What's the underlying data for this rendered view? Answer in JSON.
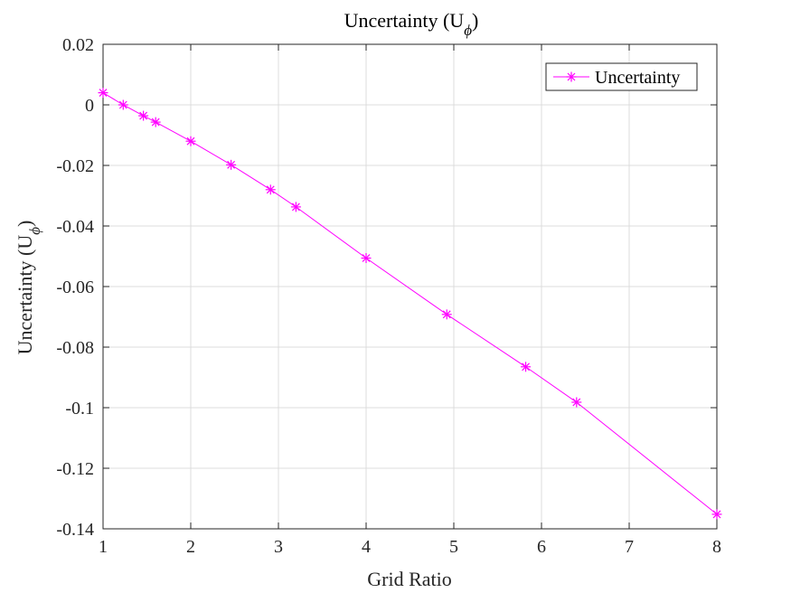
{
  "chart_data": {
    "type": "line",
    "title": "Uncertainty (U",
    "title_subscript": "ϕ",
    "title_suffix": ")",
    "xlabel": "Grid Ratio",
    "ylabel": "Uncertainty (U",
    "ylabel_subscript": "ϕ",
    "ylabel_suffix": ")",
    "xlim": [
      1,
      8
    ],
    "ylim": [
      -0.14,
      0.02
    ],
    "xticks": [
      1,
      2,
      3,
      4,
      5,
      6,
      7,
      8
    ],
    "xtick_labels": [
      "1",
      "2",
      "3",
      "4",
      "5",
      "6",
      "7",
      "8"
    ],
    "yticks": [
      0.02,
      0,
      -0.02,
      -0.04,
      -0.06,
      -0.08,
      -0.1,
      -0.12,
      -0.14
    ],
    "ytick_labels": [
      "0.02",
      "0",
      "-0.02",
      "-0.04",
      "-0.06",
      "-0.08",
      "-0.1",
      "-0.12",
      "-0.14"
    ],
    "grid": true,
    "legend_position": "top-right",
    "series": [
      {
        "name": "Uncertainty",
        "color": "#ff00ff",
        "marker": "asterisk",
        "x": [
          1.0,
          1.23,
          1.46,
          1.6,
          2.0,
          2.46,
          2.91,
          3.2,
          4.0,
          4.92,
          5.82,
          6.4,
          8.0
        ],
        "y": [
          0.004,
          0.0,
          -0.0036,
          -0.0057,
          -0.012,
          -0.0198,
          -0.028,
          -0.0337,
          -0.0506,
          -0.0692,
          -0.0865,
          -0.0982,
          -0.1352
        ]
      }
    ]
  }
}
